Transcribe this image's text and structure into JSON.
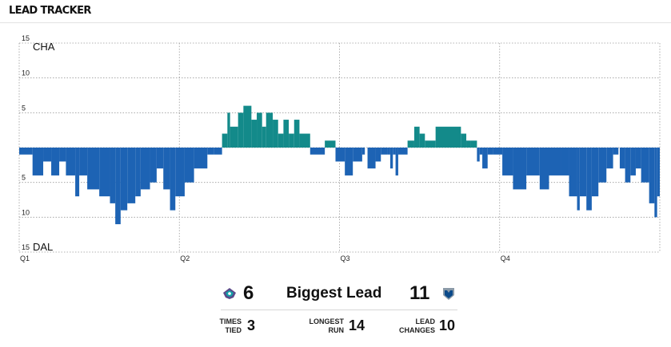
{
  "header": {
    "title": "LEAD TRACKER"
  },
  "colors": {
    "cha": "#138A8A",
    "dal": "#1D63B4",
    "grid": "#9a9a9a"
  },
  "chart_data": {
    "type": "bar",
    "title": "",
    "x_ticks": [
      "Q1",
      "Q2",
      "Q3",
      "Q4"
    ],
    "y_tick_labels": [
      "15",
      "10",
      "5",
      "5",
      "10",
      "15"
    ],
    "y_ticks": [
      15,
      10,
      5,
      -5,
      -10,
      -15
    ],
    "team_labels": {
      "top": "CHA",
      "bottom": "DAL"
    },
    "ylim": [
      -15,
      15
    ],
    "xlim": [
      0,
      48
    ],
    "x_unit": "minutes",
    "lead_blocks": [
      [
        0,
        1.0,
        -1
      ],
      [
        1.0,
        1.8,
        -4
      ],
      [
        1.8,
        2.4,
        -2
      ],
      [
        2.4,
        3.0,
        -4
      ],
      [
        3.0,
        3.5,
        -2
      ],
      [
        3.5,
        4.2,
        -4
      ],
      [
        4.2,
        4.5,
        -7
      ],
      [
        4.5,
        5.1,
        -4
      ],
      [
        5.1,
        6.0,
        -6
      ],
      [
        6.0,
        6.8,
        -7
      ],
      [
        6.8,
        7.2,
        -8
      ],
      [
        7.2,
        7.6,
        -11
      ],
      [
        7.6,
        8.1,
        -9
      ],
      [
        8.1,
        8.7,
        -8
      ],
      [
        8.7,
        9.1,
        -7
      ],
      [
        9.1,
        9.8,
        -6
      ],
      [
        9.8,
        10.3,
        -5
      ],
      [
        10.3,
        10.8,
        -3
      ],
      [
        10.8,
        11.3,
        -6
      ],
      [
        11.3,
        11.7,
        -9
      ],
      [
        11.7,
        12.4,
        -7
      ],
      [
        12.4,
        13.1,
        -5
      ],
      [
        13.1,
        14.1,
        -3
      ],
      [
        14.1,
        14.6,
        -1
      ],
      [
        14.6,
        15.2,
        -1
      ],
      [
        15.2,
        15.6,
        2
      ],
      [
        15.6,
        15.8,
        5
      ],
      [
        15.8,
        16.4,
        3
      ],
      [
        16.4,
        16.8,
        5
      ],
      [
        16.8,
        17.4,
        6
      ],
      [
        17.4,
        17.8,
        4
      ],
      [
        17.8,
        18.2,
        5
      ],
      [
        18.2,
        18.5,
        3
      ],
      [
        18.5,
        19.0,
        5
      ],
      [
        19.0,
        19.4,
        4
      ],
      [
        19.4,
        19.8,
        2
      ],
      [
        19.8,
        20.2,
        4
      ],
      [
        20.2,
        20.6,
        2
      ],
      [
        20.6,
        21.0,
        4
      ],
      [
        21.0,
        21.8,
        2
      ],
      [
        21.8,
        22.9,
        -1
      ],
      [
        22.9,
        23.7,
        1
      ],
      [
        23.7,
        24.4,
        -2
      ],
      [
        24.4,
        25.0,
        -4
      ],
      [
        25.0,
        25.7,
        -2
      ],
      [
        25.7,
        25.9,
        -1
      ],
      [
        26.1,
        26.7,
        -3
      ],
      [
        26.7,
        27.1,
        -2
      ],
      [
        27.1,
        27.6,
        -1
      ],
      [
        27.6,
        27.8,
        -1
      ],
      [
        27.8,
        28.0,
        -3
      ],
      [
        28.0,
        28.2,
        -1
      ],
      [
        28.2,
        28.4,
        -4
      ],
      [
        28.4,
        29.1,
        -1
      ],
      [
        29.1,
        29.6,
        1
      ],
      [
        29.6,
        30.0,
        3
      ],
      [
        30.0,
        30.4,
        2
      ],
      [
        30.4,
        31.2,
        1
      ],
      [
        31.2,
        33.1,
        3
      ],
      [
        33.1,
        33.5,
        2
      ],
      [
        33.5,
        33.8,
        1
      ],
      [
        33.8,
        34.3,
        1
      ],
      [
        34.3,
        34.5,
        -2
      ],
      [
        34.5,
        34.7,
        -1
      ],
      [
        34.7,
        35.1,
        -3
      ],
      [
        35.1,
        35.5,
        -1
      ],
      [
        35.5,
        36.2,
        -1
      ],
      [
        36.2,
        37.0,
        -4
      ],
      [
        37.0,
        38.0,
        -6
      ],
      [
        38.0,
        39.0,
        -4
      ],
      [
        39.0,
        39.7,
        -6
      ],
      [
        39.7,
        40.6,
        -4
      ],
      [
        40.6,
        41.2,
        -4
      ],
      [
        41.2,
        41.8,
        -7
      ],
      [
        41.8,
        42.0,
        -9
      ],
      [
        42.0,
        42.5,
        -7
      ],
      [
        42.5,
        42.9,
        -9
      ],
      [
        42.9,
        43.4,
        -7
      ],
      [
        43.4,
        44.0,
        -5
      ],
      [
        44.0,
        44.5,
        -3
      ],
      [
        44.5,
        44.9,
        -1
      ],
      [
        45.0,
        45.4,
        -3
      ],
      [
        45.4,
        45.8,
        -5
      ],
      [
        45.8,
        46.2,
        -4
      ],
      [
        46.2,
        46.6,
        -3
      ],
      [
        46.6,
        47.2,
        -5
      ],
      [
        47.2,
        47.6,
        -8
      ],
      [
        47.6,
        47.8,
        -10
      ],
      [
        47.8,
        48.0,
        -7
      ]
    ]
  },
  "stats": {
    "cha_biggest_lead": "6",
    "biggest_lead_label": "Biggest Lead",
    "dal_biggest_lead": "11",
    "times_tied_label_1": "TIMES",
    "times_tied_label_2": "TIED",
    "times_tied_value": "3",
    "longest_run_label_1": "LONGEST",
    "longest_run_label_2": "RUN",
    "longest_run_value": "14",
    "lead_changes_label_1": "LEAD",
    "lead_changes_label_2": "CHANGES",
    "lead_changes_value": "10"
  },
  "logos": {
    "cha": "hornets-logo-icon",
    "dal": "mavericks-logo-icon"
  }
}
